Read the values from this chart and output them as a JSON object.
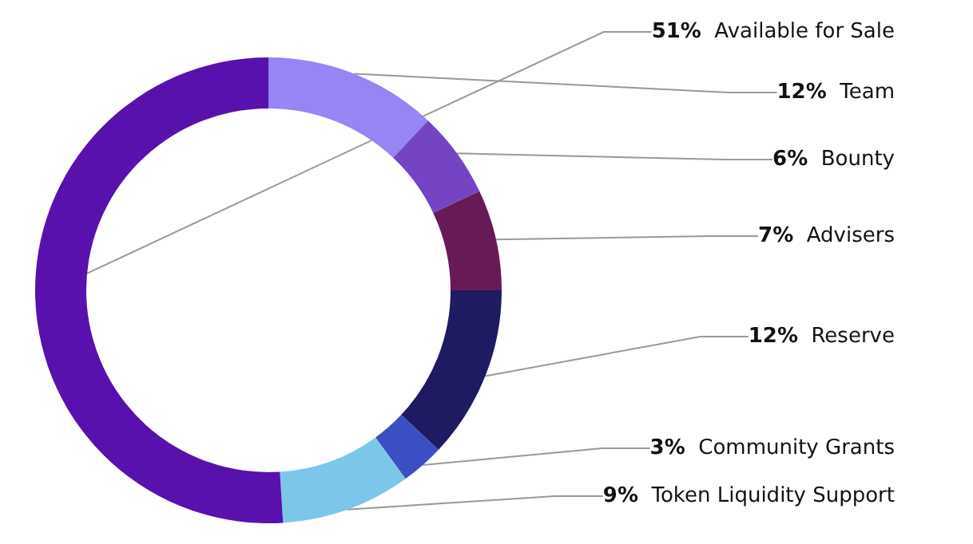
{
  "chart_data": {
    "type": "donut",
    "categories": [
      "Team",
      "Bounty",
      "Advisers",
      "Reserve",
      "Community Grants",
      "Token Liquidity Support",
      "Available for Sale"
    ],
    "values": [
      12,
      6,
      7,
      12,
      3,
      9,
      51
    ],
    "value_labels": [
      "12%",
      "6%",
      "7%",
      "12%",
      "3%",
      "9%",
      "51%"
    ],
    "colors": [
      "#9585f5",
      "#7544c4",
      "#681a56",
      "#1e1b62",
      "#3c4ec4",
      "#7cc6ea",
      "#5811ac"
    ],
    "legend": false
  }
}
